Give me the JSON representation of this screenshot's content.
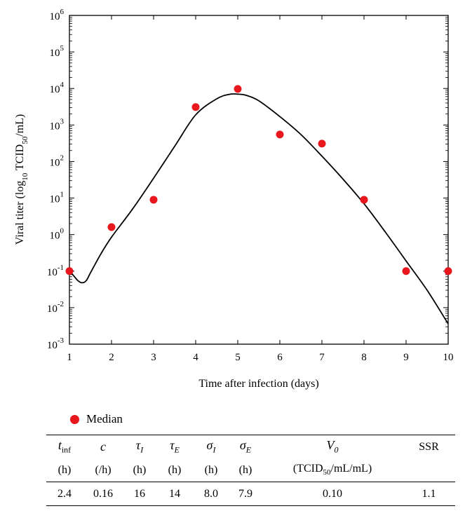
{
  "chart_data": {
    "type": "scatter",
    "xlabel": "Time after infection (days)",
    "ylabel": {
      "prefix": "Viral titer (log",
      "log_sub": "10",
      "mid": " TCID",
      "unit_sub": "50",
      "suffix": "/mL)"
    },
    "x_range": [
      1,
      10
    ],
    "x_ticks": [
      "1",
      "2",
      "3",
      "4",
      "5",
      "6",
      "7",
      "8",
      "9",
      "10"
    ],
    "y_scale": "log",
    "y_range": [
      0.001,
      1000000
    ],
    "y_ticks": [
      {
        "base": "10",
        "exp": "-3",
        "value": 0.001
      },
      {
        "base": "10",
        "exp": "-2",
        "value": 0.01
      },
      {
        "base": "10",
        "exp": "-1",
        "value": 0.1
      },
      {
        "base": "10",
        "exp": "0",
        "value": 1
      },
      {
        "base": "10",
        "exp": "1",
        "value": 10
      },
      {
        "base": "10",
        "exp": "2",
        "value": 100
      },
      {
        "base": "10",
        "exp": "3",
        "value": 1000
      },
      {
        "base": "10",
        "exp": "4",
        "value": 10000
      },
      {
        "base": "10",
        "exp": "5",
        "value": 100000
      },
      {
        "base": "10",
        "exp": "6",
        "value": 1000000
      }
    ],
    "series": [
      {
        "name": "Median",
        "kind": "scatter",
        "color": "#e8171d",
        "x": [
          1,
          2,
          3,
          4,
          5,
          6,
          7,
          8,
          9,
          10
        ],
        "y": [
          0.1,
          1.6,
          9,
          3100,
          9700,
          550,
          310,
          9,
          0.1,
          0.1
        ]
      },
      {
        "kind": "line",
        "color": "#000000",
        "x": [
          1.0,
          1.1,
          1.2,
          1.3,
          1.4,
          1.5,
          1.75,
          2.0,
          2.5,
          3.0,
          3.5,
          4.0,
          4.5,
          4.8,
          5.0,
          5.2,
          5.5,
          6.0,
          6.5,
          7.0,
          7.5,
          8.0,
          8.5,
          9.0,
          9.5,
          10.0
        ],
        "y": [
          0.1,
          0.075,
          0.055,
          0.048,
          0.055,
          0.09,
          0.3,
          0.85,
          5,
          35,
          260,
          1900,
          5200,
          6900,
          7000,
          6500,
          4600,
          1700,
          550,
          140,
          33,
          7,
          1.2,
          0.19,
          0.03,
          0.0036
        ]
      }
    ],
    "grid": false,
    "legend_position": "below-left"
  },
  "legend": {
    "label": "Median",
    "color": "#e8171d"
  },
  "table": {
    "units": [
      "(h)",
      "(/h)",
      "(h)",
      "(h)",
      "(h)",
      "(h)",
      "(TCID",
      "50",
      "/mL/mL)",
      ""
    ],
    "values": [
      "2.4",
      "0.16",
      "16",
      "14",
      "8.0",
      "7.9",
      "0.10",
      "1.1"
    ],
    "symbols": {
      "t": "t",
      "t_sub": "inf",
      "c": "c",
      "tau": "τ",
      "tau_i_sub": "I",
      "tau_e_sub": "E",
      "sigma": "σ",
      "sigma_i_sub": "I",
      "sigma_e_sub": "E",
      "v": "V",
      "v_sub": "0",
      "ssr": "SSR"
    }
  }
}
